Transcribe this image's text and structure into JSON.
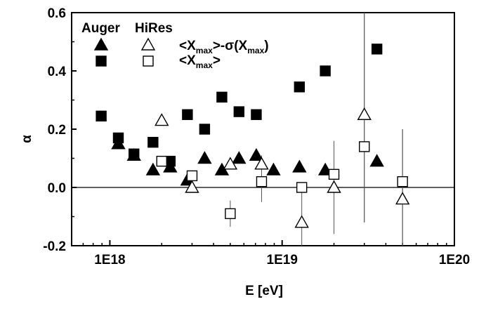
{
  "chart_data": {
    "type": "scatter",
    "xlabel": "E [eV]",
    "ylabel": "α",
    "x_scale": "log",
    "xlim": [
      6e+17,
      1e+20
    ],
    "ylim": [
      -0.2,
      0.6
    ],
    "x_ticks": [
      {
        "value": 1e+18,
        "label": "1E18"
      },
      {
        "value": 1e+19,
        "label": "1E19"
      },
      {
        "value": 1e+20,
        "label": "1E20"
      }
    ],
    "y_ticks": [
      {
        "value": -0.2,
        "label": "-0.2"
      },
      {
        "value": 0.0,
        "label": "0.0"
      },
      {
        "value": 0.2,
        "label": "0.2"
      },
      {
        "value": 0.4,
        "label": "0.4"
      },
      {
        "value": 0.6,
        "label": "0.6"
      }
    ],
    "reference_line_y": 0.0,
    "legend": {
      "headers": [
        "Auger",
        "HiRes"
      ],
      "rows": [
        {
          "label_main": "<X",
          "label_sub": "max",
          "label_mid": ">-σ(X",
          "label_sub2": "max",
          "label_end": ")"
        },
        {
          "label_main": "<X",
          "label_sub": "max",
          "label_mid": ">",
          "label_sub2": "",
          "label_end": ""
        }
      ]
    },
    "series": [
      {
        "name": "Auger <Xmax>-σ(Xmax)",
        "marker": "filled-triangle",
        "points": [
          {
            "x": 1.12e+18,
            "y": 0.15
          },
          {
            "x": 1.38e+18,
            "y": 0.11
          },
          {
            "x": 1.78e+18,
            "y": 0.06
          },
          {
            "x": 2.24e+18,
            "y": 0.07
          },
          {
            "x": 2.82e+18,
            "y": 0.025
          },
          {
            "x": 3.55e+18,
            "y": 0.1
          },
          {
            "x": 4.47e+18,
            "y": 0.06
          },
          {
            "x": 5.62e+18,
            "y": 0.1
          },
          {
            "x": 7.08e+18,
            "y": 0.11
          },
          {
            "x": 8.91e+18,
            "y": 0.06
          },
          {
            "x": 1.26e+19,
            "y": 0.07
          },
          {
            "x": 1.78e+19,
            "y": 0.06
          },
          {
            "x": 3.55e+19,
            "y": 0.09
          }
        ]
      },
      {
        "name": "Auger <Xmax>",
        "marker": "filled-square",
        "points": [
          {
            "x": 8.91e+17,
            "y": 0.245
          },
          {
            "x": 1.12e+18,
            "y": 0.17
          },
          {
            "x": 1.38e+18,
            "y": 0.115
          },
          {
            "x": 1.78e+18,
            "y": 0.155
          },
          {
            "x": 2.24e+18,
            "y": 0.09
          },
          {
            "x": 2.82e+18,
            "y": 0.25
          },
          {
            "x": 3.55e+18,
            "y": 0.2
          },
          {
            "x": 4.47e+18,
            "y": 0.31
          },
          {
            "x": 5.62e+18,
            "y": 0.26
          },
          {
            "x": 7.08e+18,
            "y": 0.25
          },
          {
            "x": 1.26e+19,
            "y": 0.345
          },
          {
            "x": 1.78e+19,
            "y": 0.4
          },
          {
            "x": 3.55e+19,
            "y": 0.475
          }
        ]
      },
      {
        "name": "HiRes <Xmax>-σ(Xmax)",
        "marker": "open-triangle",
        "points": [
          {
            "x": 2e+18,
            "y": 0.23,
            "err_low": 0.0,
            "err_high": 0.0
          },
          {
            "x": 3e+18,
            "y": 0.0,
            "err_low": 0.0,
            "err_high": 0.0
          },
          {
            "x": 5e+18,
            "y": 0.08,
            "err_low": 0.0,
            "err_high": 0.0
          },
          {
            "x": 7.6e+18,
            "y": 0.08,
            "err_low": 0.0,
            "err_high": 0.0
          },
          {
            "x": 1.3e+19,
            "y": -0.12,
            "err_low": 0.0,
            "err_high": 0.0
          },
          {
            "x": 2e+19,
            "y": 0.0,
            "err_low": 0.0,
            "err_high": 0.0
          },
          {
            "x": 3e+19,
            "y": 0.25,
            "err_low": 0.37,
            "err_high": 0.35
          },
          {
            "x": 5e+19,
            "y": -0.04,
            "err_low": 0.16,
            "err_high": 0.24
          }
        ]
      },
      {
        "name": "HiRes <Xmax>",
        "marker": "open-square",
        "points": [
          {
            "x": 2e+18,
            "y": 0.09,
            "err_low": 0.0,
            "err_high": 0.0
          },
          {
            "x": 3e+18,
            "y": 0.04,
            "err_low": 0.0,
            "err_high": 0.0
          },
          {
            "x": 5e+18,
            "y": -0.09,
            "err_low": 0.045,
            "err_high": 0.045
          },
          {
            "x": 7.6e+18,
            "y": 0.02,
            "err_low": 0.07,
            "err_high": 0.09
          },
          {
            "x": 1.3e+19,
            "y": 0.0,
            "err_low": 0.2,
            "err_high": 0.0
          },
          {
            "x": 2e+19,
            "y": 0.045,
            "err_low": 0.205,
            "err_high": 0.115
          },
          {
            "x": 3e+19,
            "y": 0.14,
            "err_low": 0.26,
            "err_high": 0.46
          },
          {
            "x": 5e+19,
            "y": 0.02,
            "err_low": 0.22,
            "err_high": 0.18
          }
        ]
      }
    ]
  }
}
